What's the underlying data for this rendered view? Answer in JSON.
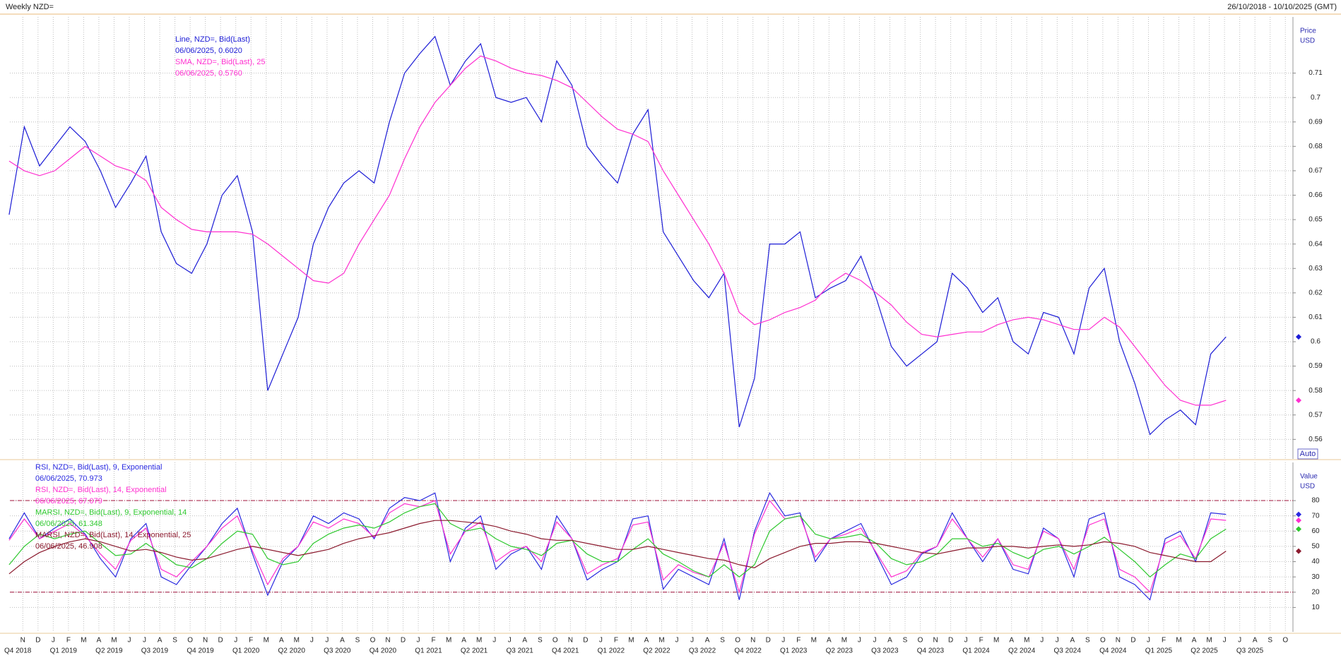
{
  "header": {
    "title": "Weekly NZD=",
    "range": "26/10/2018 - 10/10/2025 (GMT)",
    "button": "Auto"
  },
  "chart_data": [
    {
      "type": "line",
      "y_axis_title": "Price",
      "y_axis_unit": "USD",
      "x": [
        "2018-10",
        "2018-11",
        "2018-12",
        "2019-01",
        "2019-02",
        "2019-03",
        "2019-04",
        "2019-05",
        "2019-06",
        "2019-07",
        "2019-08",
        "2019-09",
        "2019-10",
        "2019-11",
        "2019-12",
        "2020-01",
        "2020-02",
        "2020-03",
        "2020-04",
        "2020-05",
        "2020-06",
        "2020-07",
        "2020-08",
        "2020-09",
        "2020-10",
        "2020-11",
        "2020-12",
        "2021-01",
        "2021-02",
        "2021-03",
        "2021-04",
        "2021-05",
        "2021-06",
        "2021-07",
        "2021-08",
        "2021-09",
        "2021-10",
        "2021-11",
        "2021-12",
        "2022-01",
        "2022-02",
        "2022-03",
        "2022-04",
        "2022-05",
        "2022-06",
        "2022-07",
        "2022-08",
        "2022-09",
        "2022-10",
        "2022-11",
        "2022-12",
        "2023-01",
        "2023-02",
        "2023-03",
        "2023-04",
        "2023-05",
        "2023-06",
        "2023-07",
        "2023-08",
        "2023-09",
        "2023-10",
        "2023-11",
        "2023-12",
        "2024-01",
        "2024-02",
        "2024-03",
        "2024-04",
        "2024-05",
        "2024-06",
        "2024-07",
        "2024-08",
        "2024-09",
        "2024-10",
        "2024-11",
        "2024-12",
        "2025-01",
        "2025-02",
        "2025-03",
        "2025-04",
        "2025-05",
        "2025-06"
      ],
      "xlim": [
        "2018-10",
        "2025-10"
      ],
      "ylim": [
        0.552,
        0.733
      ],
      "yticks": [
        0.56,
        0.57,
        0.58,
        0.59,
        0.6,
        0.61,
        0.62,
        0.63,
        0.64,
        0.65,
        0.66,
        0.67,
        0.68,
        0.69,
        0.7,
        0.71
      ],
      "grid": true,
      "series": [
        {
          "name": "Line, NZD=, Bid(Last)",
          "legend_value": "06/06/2025, 0.6020",
          "color": "#1c1cd6",
          "values": [
            0.652,
            0.688,
            0.672,
            0.68,
            0.688,
            0.682,
            0.67,
            0.655,
            0.665,
            0.676,
            0.645,
            0.632,
            0.628,
            0.64,
            0.66,
            0.668,
            0.645,
            0.58,
            0.595,
            0.61,
            0.64,
            0.655,
            0.665,
            0.67,
            0.665,
            0.69,
            0.71,
            0.718,
            0.725,
            0.705,
            0.715,
            0.722,
            0.7,
            0.698,
            0.7,
            0.69,
            0.715,
            0.705,
            0.68,
            0.672,
            0.665,
            0.685,
            0.695,
            0.645,
            0.635,
            0.625,
            0.618,
            0.628,
            0.565,
            0.585,
            0.64,
            0.64,
            0.645,
            0.618,
            0.622,
            0.625,
            0.635,
            0.618,
            0.598,
            0.59,
            0.595,
            0.6,
            0.628,
            0.622,
            0.612,
            0.618,
            0.6,
            0.595,
            0.612,
            0.61,
            0.595,
            0.622,
            0.63,
            0.6,
            0.583,
            0.562,
            0.568,
            0.572,
            0.566,
            0.595,
            0.602
          ]
        },
        {
          "name": "SMA, NZD=, Bid(Last),  25",
          "legend_value": "06/06/2025, 0.5760",
          "color": "#ff2fd0",
          "values": [
            0.674,
            0.67,
            0.668,
            0.67,
            0.675,
            0.68,
            0.676,
            0.672,
            0.67,
            0.666,
            0.655,
            0.65,
            0.646,
            0.645,
            0.645,
            0.645,
            0.644,
            0.64,
            0.635,
            0.63,
            0.625,
            0.624,
            0.628,
            0.64,
            0.65,
            0.66,
            0.675,
            0.688,
            0.698,
            0.705,
            0.712,
            0.717,
            0.715,
            0.712,
            0.71,
            0.709,
            0.707,
            0.704,
            0.698,
            0.692,
            0.687,
            0.685,
            0.682,
            0.67,
            0.66,
            0.65,
            0.64,
            0.628,
            0.612,
            0.607,
            0.609,
            0.612,
            0.614,
            0.617,
            0.624,
            0.628,
            0.625,
            0.62,
            0.615,
            0.608,
            0.603,
            0.602,
            0.603,
            0.604,
            0.604,
            0.607,
            0.609,
            0.61,
            0.609,
            0.607,
            0.605,
            0.605,
            0.61,
            0.606,
            0.598,
            0.59,
            0.582,
            0.576,
            0.574,
            0.574,
            0.576
          ]
        }
      ]
    },
    {
      "type": "line",
      "y_axis_title": "Value",
      "y_axis_unit": "USD",
      "x": [
        "2018-10",
        "2018-11",
        "2018-12",
        "2019-01",
        "2019-02",
        "2019-03",
        "2019-04",
        "2019-05",
        "2019-06",
        "2019-07",
        "2019-08",
        "2019-09",
        "2019-10",
        "2019-11",
        "2019-12",
        "2020-01",
        "2020-02",
        "2020-03",
        "2020-04",
        "2020-05",
        "2020-06",
        "2020-07",
        "2020-08",
        "2020-09",
        "2020-10",
        "2020-11",
        "2020-12",
        "2021-01",
        "2021-02",
        "2021-03",
        "2021-04",
        "2021-05",
        "2021-06",
        "2021-07",
        "2021-08",
        "2021-09",
        "2021-10",
        "2021-11",
        "2021-12",
        "2022-01",
        "2022-02",
        "2022-03",
        "2022-04",
        "2022-05",
        "2022-06",
        "2022-07",
        "2022-08",
        "2022-09",
        "2022-10",
        "2022-11",
        "2022-12",
        "2023-01",
        "2023-02",
        "2023-03",
        "2023-04",
        "2023-05",
        "2023-06",
        "2023-07",
        "2023-08",
        "2023-09",
        "2023-10",
        "2023-11",
        "2023-12",
        "2024-01",
        "2024-02",
        "2024-03",
        "2024-04",
        "2024-05",
        "2024-06",
        "2024-07",
        "2024-08",
        "2024-09",
        "2024-10",
        "2024-11",
        "2024-12",
        "2025-01",
        "2025-02",
        "2025-03",
        "2025-04",
        "2025-05",
        "2025-06"
      ],
      "xlim": [
        "2018-10",
        "2025-10"
      ],
      "ylim": [
        -6,
        105
      ],
      "yticks": [
        10,
        20,
        30,
        40,
        50,
        60,
        70,
        80
      ],
      "levels": [
        20,
        80
      ],
      "grid": true,
      "x_labels": [
        "N",
        "D",
        "J",
        "F",
        "M",
        "A",
        "M",
        "J",
        "J",
        "A",
        "S",
        "O",
        "N",
        "D",
        "J",
        "F",
        "M",
        "A",
        "M",
        "J",
        "J",
        "A",
        "S",
        "O",
        "N",
        "D",
        "J",
        "F",
        "M",
        "A",
        "M",
        "J",
        "J",
        "A",
        "S",
        "O",
        "N",
        "D",
        "J",
        "F",
        "M",
        "A",
        "M",
        "J",
        "J",
        "A",
        "S",
        "O",
        "N",
        "D",
        "J",
        "F",
        "M",
        "A",
        "M",
        "J",
        "J",
        "A",
        "S",
        "O",
        "N",
        "D",
        "J",
        "F",
        "M",
        "A",
        "M",
        "J",
        "J",
        "A",
        "S",
        "O",
        "N",
        "D",
        "J",
        "F",
        "M",
        "A",
        "M",
        "J",
        "J",
        "A",
        "S",
        "O"
      ],
      "x_group_labels": [
        "Q4 2018",
        "Q1 2019",
        "Q2 2019",
        "Q3 2019",
        "Q4 2019",
        "Q1 2020",
        "Q2 2020",
        "Q3 2020",
        "Q4 2020",
        "Q1 2021",
        "Q2 2021",
        "Q3 2021",
        "Q4 2021",
        "Q1 2022",
        "Q2 2022",
        "Q3 2022",
        "Q4 2022",
        "Q1 2023",
        "Q2 2023",
        "Q3 2023",
        "Q4 2023",
        "Q1 2024",
        "Q2 2024",
        "Q3 2024",
        "Q4 2024",
        "Q1 2025",
        "Q2 2025",
        "Q3 2025"
      ],
      "series": [
        {
          "name": "RSI, NZD=, Bid(Last),  9, Exponential",
          "legend_value": "06/06/2025, 70.973",
          "color": "#2a2ae0",
          "values": [
            55,
            72,
            55,
            62,
            68,
            58,
            42,
            30,
            55,
            65,
            30,
            25,
            38,
            50,
            65,
            75,
            45,
            18,
            40,
            50,
            70,
            65,
            72,
            68,
            55,
            75,
            82,
            80,
            85,
            40,
            62,
            70,
            35,
            45,
            50,
            35,
            70,
            55,
            28,
            35,
            40,
            68,
            70,
            22,
            35,
            30,
            25,
            55,
            15,
            60,
            85,
            70,
            72,
            40,
            55,
            60,
            65,
            45,
            25,
            30,
            45,
            50,
            72,
            55,
            40,
            55,
            35,
            32,
            62,
            55,
            30,
            68,
            72,
            30,
            25,
            15,
            55,
            60,
            40,
            72,
            70.973
          ]
        },
        {
          "name": "RSI, NZD=, Bid(Last),  14, Exponential",
          "legend_value": "06/06/2025, 67.079",
          "color": "#ff2fd0",
          "values": [
            54,
            68,
            55,
            60,
            65,
            57,
            45,
            35,
            54,
            62,
            35,
            30,
            40,
            50,
            62,
            70,
            47,
            25,
            42,
            50,
            66,
            62,
            68,
            65,
            56,
            72,
            78,
            76,
            80,
            45,
            60,
            66,
            40,
            47,
            50,
            40,
            66,
            55,
            32,
            38,
            42,
            64,
            66,
            28,
            38,
            33,
            30,
            52,
            20,
            58,
            80,
            68,
            70,
            43,
            55,
            58,
            62,
            46,
            30,
            34,
            46,
            50,
            68,
            55,
            43,
            55,
            38,
            35,
            60,
            55,
            35,
            64,
            68,
            35,
            30,
            20,
            52,
            57,
            42,
            68,
            67.079
          ]
        },
        {
          "name": "MARSI, NZD=, Bid(Last),  9, Exponential, 14",
          "legend_value": "06/06/2025, 61.348",
          "color": "#2ec82e",
          "values": [
            38,
            50,
            58,
            55,
            58,
            60,
            52,
            44,
            45,
            52,
            45,
            38,
            36,
            42,
            52,
            60,
            58,
            42,
            38,
            40,
            52,
            58,
            62,
            64,
            62,
            66,
            72,
            76,
            78,
            65,
            60,
            62,
            55,
            50,
            48,
            44,
            52,
            54,
            45,
            40,
            40,
            48,
            55,
            45,
            40,
            34,
            30,
            38,
            30,
            38,
            60,
            68,
            70,
            58,
            55,
            56,
            58,
            52,
            42,
            38,
            40,
            45,
            55,
            55,
            50,
            52,
            46,
            42,
            48,
            50,
            45,
            50,
            56,
            48,
            40,
            30,
            38,
            45,
            42,
            55,
            61.348
          ]
        },
        {
          "name": "MARSI, NZD=, Bid(Last),  14, Exponential, 25",
          "legend_value": "06/06/2025, 46.908",
          "color": "#8b1a2e",
          "values": [
            32,
            40,
            46,
            50,
            53,
            55,
            53,
            50,
            47,
            48,
            46,
            43,
            41,
            42,
            45,
            48,
            50,
            48,
            46,
            44,
            46,
            48,
            52,
            55,
            57,
            59,
            62,
            65,
            67,
            67,
            66,
            65,
            63,
            60,
            58,
            55,
            54,
            54,
            52,
            50,
            48,
            48,
            50,
            48,
            46,
            44,
            42,
            41,
            38,
            36,
            42,
            46,
            50,
            52,
            52,
            53,
            53,
            52,
            50,
            48,
            46,
            45,
            47,
            49,
            49,
            50,
            50,
            49,
            50,
            51,
            50,
            51,
            53,
            52,
            50,
            46,
            44,
            42,
            40,
            40,
            46.908
          ]
        }
      ]
    }
  ]
}
